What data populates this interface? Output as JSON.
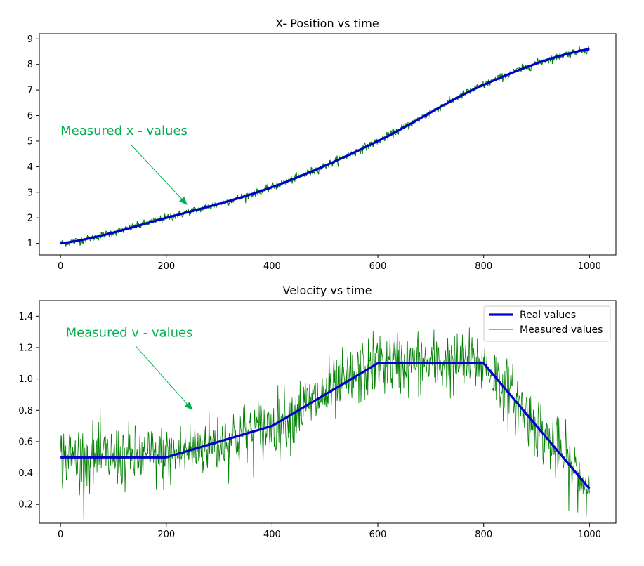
{
  "colors": {
    "real": "#0000cc",
    "measured": "#008000",
    "annotation": "#00b050"
  },
  "chart_data": [
    {
      "type": "line",
      "title": "X- Position vs time",
      "xlabel": "",
      "ylabel": "",
      "xlim": [
        -40,
        1050
      ],
      "ylim": [
        0.55,
        9.2
      ],
      "xticks": [
        0,
        200,
        400,
        600,
        800,
        1000
      ],
      "yticks": [
        1,
        2,
        3,
        4,
        5,
        6,
        7,
        8,
        9
      ],
      "annotation": {
        "text": "Measured x - values",
        "xy": [
          240,
          2.5
        ],
        "xytext": [
          0,
          5.25
        ]
      },
      "series": [
        {
          "role": "real",
          "x": [
            0,
            200,
            400,
            600,
            800,
            1000
          ],
          "y": [
            1.0,
            2.0,
            3.2,
            5.0,
            7.2,
            8.6
          ]
        },
        {
          "role": "measured",
          "x": [
            0,
            200,
            400,
            600,
            800,
            1000
          ],
          "y": [
            1.0,
            2.0,
            3.2,
            5.0,
            7.2,
            8.6
          ],
          "noise": 0.08
        }
      ]
    },
    {
      "type": "line",
      "title": "Velocity vs time",
      "xlabel": "",
      "ylabel": "",
      "xlim": [
        -40,
        1050
      ],
      "ylim": [
        0.08,
        1.5
      ],
      "xticks": [
        0,
        200,
        400,
        600,
        800,
        1000
      ],
      "yticks": [
        "0.2",
        "0.4",
        "0.6",
        "0.8",
        "1.0",
        "1.2",
        "1.4"
      ],
      "annotation": {
        "text": "Measured v - values",
        "xy": [
          250,
          0.8
        ],
        "xytext": [
          10,
          1.27
        ]
      },
      "legend": {
        "position": "upper-right",
        "entries": [
          "Real values",
          "Measured values"
        ]
      },
      "series": [
        {
          "name": "Real values",
          "role": "real",
          "x": [
            0,
            200,
            400,
            600,
            800,
            1000
          ],
          "y": [
            0.5,
            0.5,
            0.7,
            1.1,
            1.1,
            0.3
          ]
        },
        {
          "name": "Measured values",
          "role": "measured",
          "x": [
            0,
            200,
            400,
            600,
            800,
            1000
          ],
          "y": [
            0.5,
            0.5,
            0.7,
            1.1,
            1.1,
            0.3
          ],
          "noise": 0.1
        }
      ]
    }
  ]
}
